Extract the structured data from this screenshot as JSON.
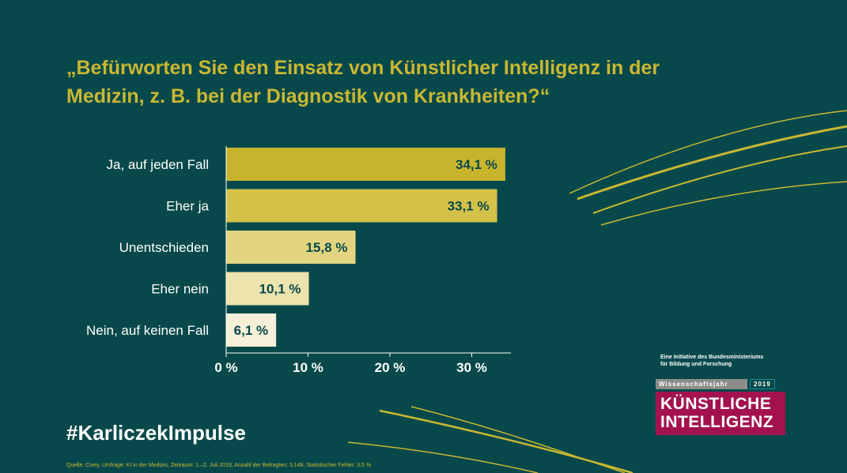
{
  "title": "„Befürworten Sie den Einsatz von Künstlicher Intelligenz in der Medizin, z. B. bei der Diagnostik von Krankheiten?“",
  "hashtag": "#KarliczekImpulse",
  "source": "Quelle: Civey, Umfrage: KI in der Medizin, Zeitraum: 1.–2. Juli 2019, Anzahl der Befragten: 3.148, Statistischer Fehler: 3,5 %",
  "logo": {
    "tagline_1": "Eine Initiative des Bundesministeriums",
    "tagline_2": "für Bildung und Forschung",
    "wissenschaftsjahr": "Wissenschaftsjahr",
    "year": "2019",
    "line_1": "KÜNSTLICHE",
    "line_2": "INTELLIGENZ"
  },
  "colors": {
    "background": "#07494a",
    "title": "#c9b733",
    "bars": [
      "#c8b42c",
      "#d4c248",
      "#e3d57f",
      "#ede3ad",
      "#f6f0d8"
    ],
    "logo_box": "#a3124f"
  },
  "chart_data": {
    "type": "bar",
    "orientation": "horizontal",
    "categories": [
      "Ja, auf jeden Fall",
      "Eher ja",
      "Unentschieden",
      "Eher nein",
      "Nein, auf keinen Fall"
    ],
    "values": [
      34.1,
      33.1,
      15.8,
      10.1,
      6.1
    ],
    "value_labels": [
      "34,1 %",
      "33,1 %",
      "15,8 %",
      "10,1 %",
      "6,1 %"
    ],
    "xticks": [
      0,
      10,
      20,
      30
    ],
    "xtick_labels": [
      "0 %",
      "10 %",
      "20 %",
      "30 %"
    ],
    "xlim": [
      0,
      35
    ],
    "title": "„Befürworten Sie den Einsatz von Künstlicher Intelligenz in der Medizin, z. B. bei der Diagnostik von Krankheiten?“",
    "xlabel": "",
    "ylabel": "",
    "grid": false
  }
}
